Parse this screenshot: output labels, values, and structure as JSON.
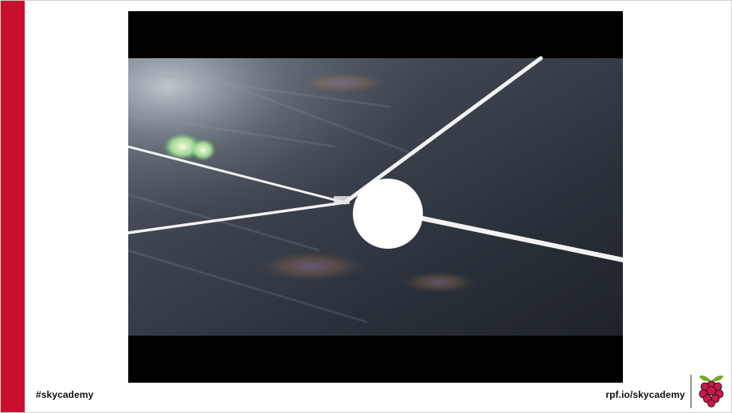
{
  "footer": {
    "hashtag": "#skycademy",
    "url": "rpf.io/skycademy"
  },
  "colors": {
    "accent_bar": "#c8102e",
    "logo_berry": "#c51a4a",
    "logo_leaf": "#75a928",
    "video_letterbox": "#000000"
  },
  "icons": {
    "logo": "raspberry-pi-logo"
  }
}
